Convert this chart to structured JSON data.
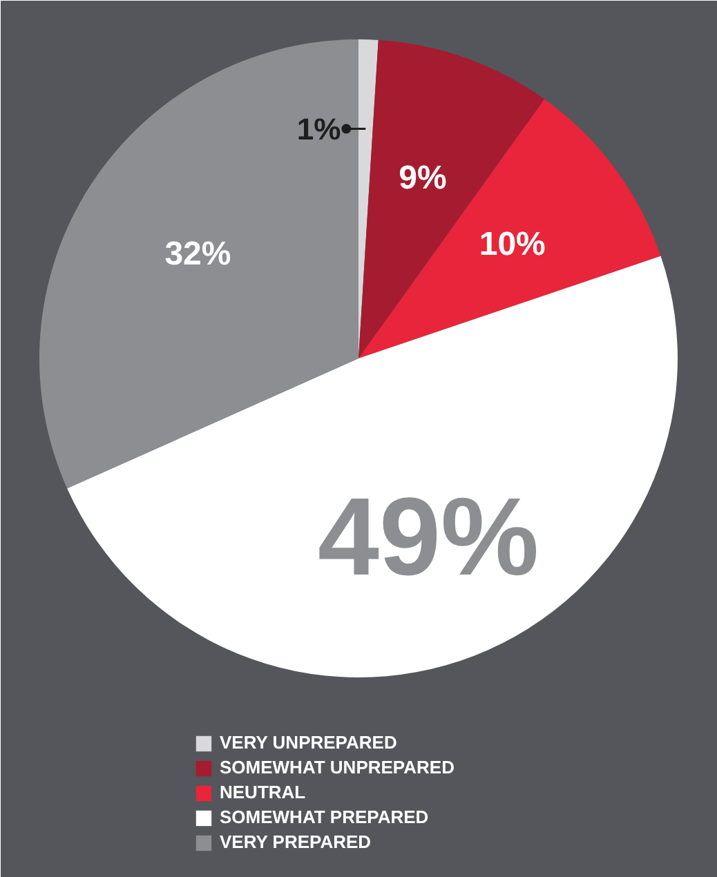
{
  "chart_data": {
    "type": "pie",
    "categories": [
      "VERY UNPREPARED",
      "SOMEWHAT UNPREPARED",
      "NEUTRAL",
      "SOMEWHAT PREPARED",
      "VERY PREPARED"
    ],
    "values": [
      1,
      9,
      10,
      49,
      32
    ],
    "colors": [
      "#d9d9db",
      "#a51c30",
      "#e8253a",
      "#ffffff",
      "#8c8e91"
    ],
    "value_labels": [
      "1%",
      "9%",
      "10%",
      "49%",
      "32%"
    ],
    "legend": "bottom"
  }
}
